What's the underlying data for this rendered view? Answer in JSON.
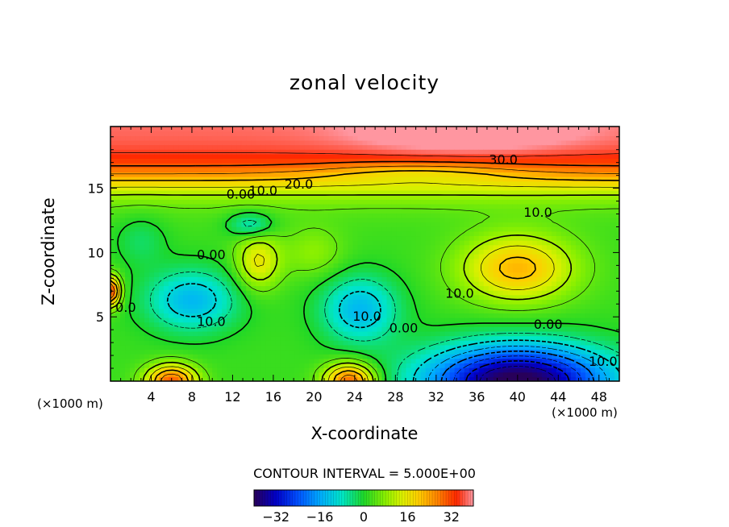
{
  "chart_data": {
    "type": "heatmap",
    "title": "zonal velocity",
    "xlabel": "X-coordinate",
    "ylabel": "Z-coordinate",
    "x_unit": "(×1000 m)",
    "y_unit": "(×1000 m)",
    "xlim": [
      0,
      50
    ],
    "ylim": [
      0,
      19.8
    ],
    "x_ticks": [
      4,
      8,
      12,
      16,
      20,
      24,
      28,
      32,
      36,
      40,
      44,
      48
    ],
    "y_ticks": [
      5,
      10,
      15
    ],
    "contour_interval_text": "CONTOUR INTERVAL = 5.000E+00",
    "colorbar_ticks": [
      -32,
      -16,
      0,
      16,
      32
    ],
    "colorbar_range": [
      -40,
      40
    ],
    "contour_labels": [
      {
        "text": "30.0",
        "x": 38.6,
        "z": 17.2
      },
      {
        "text": "20.0",
        "x": 18.5,
        "z": 15.3
      },
      {
        "text": "10.0",
        "x": 15.0,
        "z": 14.8
      },
      {
        "text": "0.00",
        "x": 12.8,
        "z": 14.5
      },
      {
        "text": "10.0",
        "x": 42.0,
        "z": 13.1
      },
      {
        "text": "0.00",
        "x": 9.9,
        "z": 9.8
      },
      {
        "text": "10.0",
        "x": 34.3,
        "z": 6.8
      },
      {
        "text": "10.0",
        "x": 9.9,
        "z": 4.6
      },
      {
        "text": "10.0",
        "x": 25.2,
        "z": 5.0
      },
      {
        "text": "0.00",
        "x": 28.8,
        "z": 4.1
      },
      {
        "text": "0.00",
        "x": 43.0,
        "z": 4.4
      },
      {
        "text": "10.0",
        "x": 48.4,
        "z": 1.5
      },
      {
        "text": "0.0",
        "x": 1.5,
        "z": 5.7
      }
    ],
    "features": [
      {
        "kind": "jet",
        "desc": "upper westerly jet",
        "x": 35,
        "z": 19.8,
        "value": 36
      },
      {
        "kind": "max",
        "x": 40,
        "z": 8.8,
        "value": 20
      },
      {
        "kind": "max",
        "x": 14.5,
        "z": 9.3,
        "value": 15
      },
      {
        "kind": "min",
        "x": 8,
        "z": 6.5,
        "value": -14
      },
      {
        "kind": "min",
        "x": 24.5,
        "z": 5.8,
        "value": -14
      },
      {
        "kind": "min",
        "x": 13.8,
        "z": 12.2,
        "value": -10
      },
      {
        "kind": "min",
        "x": 40,
        "z": 0.4,
        "value": -38
      },
      {
        "kind": "max",
        "x": 6,
        "z": 0.3,
        "value": 28
      },
      {
        "kind": "max",
        "x": 23.5,
        "z": 0.4,
        "value": 28
      },
      {
        "kind": "max",
        "x": 0.2,
        "z": 7.0,
        "value": 30
      }
    ]
  }
}
